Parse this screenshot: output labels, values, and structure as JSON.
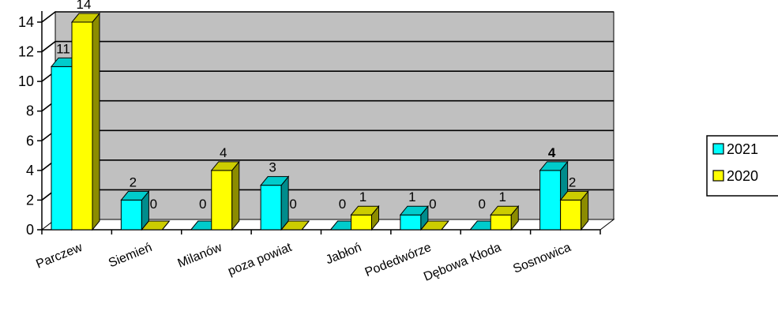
{
  "chart_data": {
    "type": "bar",
    "title": "",
    "xlabel": "",
    "ylabel": "",
    "ylim": [
      0,
      14
    ],
    "yticks": [
      0,
      2,
      4,
      6,
      8,
      10,
      12,
      14
    ],
    "grid": true,
    "legend_position": "right",
    "categories": [
      "Parczew",
      "Siemień",
      "Milanów",
      "poza powiat",
      "Jabłoń",
      "Podedwórze",
      "Dębowa Kłoda",
      "Sosnowica"
    ],
    "series": [
      {
        "name": "2021",
        "color": "#00ffff",
        "values": [
          11,
          2,
          0,
          3,
          0,
          1,
          0,
          4
        ]
      },
      {
        "name": "2020",
        "color": "#ffff00",
        "values": [
          14,
          0,
          4,
          0,
          1,
          0,
          1,
          2
        ]
      }
    ]
  },
  "colors": {
    "plot_background": "#c0c0c0",
    "gridline": "#000000"
  }
}
